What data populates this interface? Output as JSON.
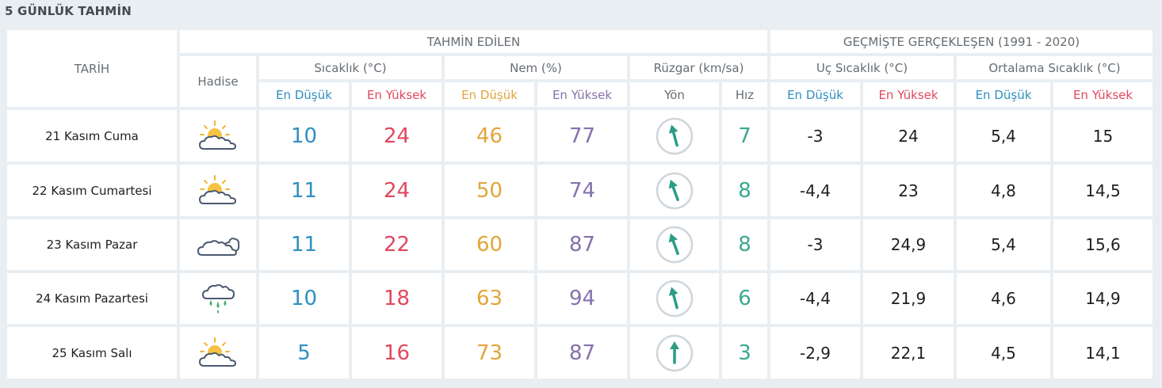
{
  "title": "5 GÜNLÜK TAHMİN",
  "headers": {
    "date": "TARİH",
    "forecast_group": "TAHMİN EDİLEN",
    "history_group": "GEÇMİŞTE GERÇEKLEŞEN (1991 - 2020)",
    "event": "Hadise",
    "temperature": "Sıcaklık (°C)",
    "humidity": "Nem (%)",
    "wind": "Rüzgar (km/sa)",
    "extreme_temp": "Uç Sıcaklık (°C)",
    "avg_temp": "Ortalama Sıcaklık (°C)",
    "min": "En Düşük",
    "max": "En Yüksek",
    "direction": "Yön",
    "speed": "Hız"
  },
  "colors": {
    "low": "#2e8fc0",
    "high": "#e0485e",
    "humidity_low": "#e1a53a",
    "humidity_high": "#8571ad",
    "wind_speed": "#3aaa8f",
    "arrow": "#2a9d84"
  },
  "rows": [
    {
      "date": "21 Kasım Cuma",
      "icon": "partly-cloudy-icon",
      "temp_min": "10",
      "temp_max": "24",
      "hum_min": "46",
      "hum_max": "77",
      "wind_dir_deg": 345,
      "wind_speed": "7",
      "ext_min": "-3",
      "ext_max": "24",
      "avg_min": "5,4",
      "avg_max": "15"
    },
    {
      "date": "22 Kasım Cumartesi",
      "icon": "partly-cloudy-icon",
      "temp_min": "11",
      "temp_max": "24",
      "hum_min": "50",
      "hum_max": "74",
      "wind_dir_deg": 340,
      "wind_speed": "8",
      "ext_min": "-4,4",
      "ext_max": "23",
      "avg_min": "4,8",
      "avg_max": "14,5"
    },
    {
      "date": "23 Kasım Pazar",
      "icon": "cloudy-icon",
      "temp_min": "11",
      "temp_max": "22",
      "hum_min": "60",
      "hum_max": "87",
      "wind_dir_deg": 340,
      "wind_speed": "8",
      "ext_min": "-3",
      "ext_max": "24,9",
      "avg_min": "5,4",
      "avg_max": "15,6"
    },
    {
      "date": "24 Kasım Pazartesi",
      "icon": "rain-icon",
      "temp_min": "10",
      "temp_max": "18",
      "hum_min": "63",
      "hum_max": "94",
      "wind_dir_deg": 345,
      "wind_speed": "6",
      "ext_min": "-4,4",
      "ext_max": "21,9",
      "avg_min": "4,6",
      "avg_max": "14,9"
    },
    {
      "date": "25 Kasım Salı",
      "icon": "partly-cloudy-icon",
      "temp_min": "5",
      "temp_max": "16",
      "hum_min": "73",
      "hum_max": "87",
      "wind_dir_deg": 0,
      "wind_speed": "3",
      "ext_min": "-2,9",
      "ext_max": "22,1",
      "avg_min": "4,5",
      "avg_max": "14,1"
    }
  ]
}
